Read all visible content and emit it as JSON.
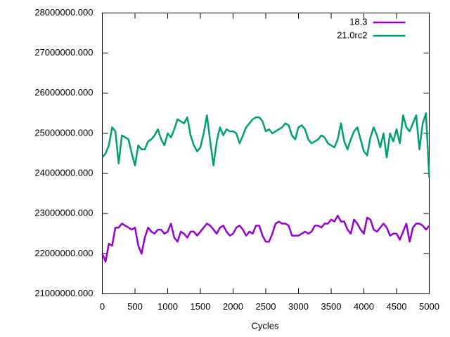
{
  "chart_data": {
    "type": "line",
    "xlabel": "Cycles",
    "x": [
      0,
      50,
      100,
      150,
      200,
      250,
      300,
      350,
      400,
      450,
      500,
      550,
      600,
      650,
      700,
      750,
      800,
      850,
      900,
      950,
      1000,
      1050,
      1100,
      1150,
      1200,
      1250,
      1300,
      1350,
      1400,
      1450,
      1500,
      1550,
      1600,
      1650,
      1700,
      1750,
      1800,
      1850,
      1900,
      1950,
      2000,
      2050,
      2100,
      2150,
      2200,
      2250,
      2300,
      2350,
      2400,
      2450,
      2500,
      2550,
      2600,
      2650,
      2700,
      2750,
      2800,
      2850,
      2900,
      2950,
      3000,
      3050,
      3100,
      3150,
      3200,
      3250,
      3300,
      3350,
      3400,
      3450,
      3500,
      3550,
      3600,
      3650,
      3700,
      3750,
      3800,
      3850,
      3900,
      3950,
      4000,
      4050,
      4100,
      4150,
      4200,
      4250,
      4300,
      4350,
      4400,
      4450,
      4500,
      4550,
      4600,
      4650,
      4700,
      4750,
      4800,
      4850,
      4900,
      4950,
      5000
    ],
    "series": [
      {
        "name": "18.3",
        "color": "#9400d3",
        "values": [
          22000000,
          21800000,
          22250000,
          22200000,
          22650000,
          22650000,
          22750000,
          22700000,
          22650000,
          22600000,
          22650000,
          22200000,
          22000000,
          22400000,
          22650000,
          22550000,
          22500000,
          22600000,
          22600000,
          22500000,
          22550000,
          22750000,
          22400000,
          22300000,
          22550000,
          22500000,
          22400000,
          22550000,
          22550000,
          22450000,
          22550000,
          22650000,
          22750000,
          22700000,
          22600000,
          22500000,
          22650000,
          22700000,
          22550000,
          22450000,
          22500000,
          22650000,
          22700000,
          22600000,
          22450000,
          22550000,
          22500000,
          22700000,
          22700000,
          22450000,
          22300000,
          22300000,
          22500000,
          22750000,
          22800000,
          22750000,
          22750000,
          22700000,
          22450000,
          22450000,
          22450000,
          22500000,
          22550000,
          22500000,
          22550000,
          22700000,
          22700000,
          22650000,
          22750000,
          22750000,
          22850000,
          22800000,
          22950000,
          22800000,
          22800000,
          22600000,
          22500000,
          22850000,
          22750000,
          22600000,
          22500000,
          22900000,
          22850000,
          22600000,
          22550000,
          22650000,
          22750000,
          22650000,
          22450000,
          22500000,
          22500000,
          22350000,
          22550000,
          22750000,
          22300000,
          22650000,
          22750000,
          22750000,
          22700000,
          22600000,
          22700000
        ]
      },
      {
        "name": "21.0rc2",
        "color": "#009e73",
        "values": [
          24400000,
          24500000,
          24700000,
          25150000,
          25050000,
          24250000,
          24950000,
          24900000,
          24850000,
          24500000,
          24200000,
          24700000,
          24600000,
          24600000,
          24800000,
          24850000,
          24950000,
          25100000,
          24850000,
          24700000,
          25000000,
          24900000,
          25100000,
          25350000,
          25300000,
          25250000,
          25400000,
          24950000,
          24700000,
          24550000,
          24650000,
          25000000,
          25450000,
          24800000,
          24200000,
          24800000,
          25150000,
          24950000,
          25100000,
          25050000,
          25050000,
          25000000,
          24750000,
          24950000,
          25150000,
          25250000,
          25350000,
          25400000,
          25400000,
          25300000,
          25050000,
          25100000,
          25000000,
          25050000,
          25100000,
          25150000,
          25250000,
          25200000,
          24950000,
          24850000,
          25150000,
          25200000,
          25100000,
          24850000,
          24750000,
          24800000,
          24850000,
          24950000,
          24900000,
          24750000,
          24700000,
          24650000,
          24850000,
          25250000,
          24800000,
          24600000,
          24850000,
          25050000,
          25150000,
          24850000,
          24550000,
          24450000,
          24900000,
          25150000,
          24950000,
          24650000,
          25000000,
          24400000,
          25000000,
          24800000,
          25100000,
          24750000,
          25450000,
          25150000,
          25050000,
          25250000,
          25450000,
          24600000,
          25250000,
          25500000,
          23900000
        ]
      }
    ],
    "xlim": [
      0,
      5000
    ],
    "xticks": [
      0,
      500,
      1000,
      1500,
      2000,
      2500,
      3000,
      3500,
      4000,
      4500,
      5000
    ],
    "ylim": [
      21000000,
      28000000
    ],
    "yticks": [
      {
        "value": 21000000,
        "label": "21000000.000"
      },
      {
        "value": 22000000,
        "label": "22000000.000"
      },
      {
        "value": 23000000,
        "label": "23000000.000"
      },
      {
        "value": 24000000,
        "label": "24000000.000"
      },
      {
        "value": 25000000,
        "label": "25000000.000"
      },
      {
        "value": 26000000,
        "label": "26000000.000"
      },
      {
        "value": 27000000,
        "label": "27000000.000"
      },
      {
        "value": 28000000,
        "label": "28000000.000"
      }
    ],
    "legend": "top-right"
  }
}
